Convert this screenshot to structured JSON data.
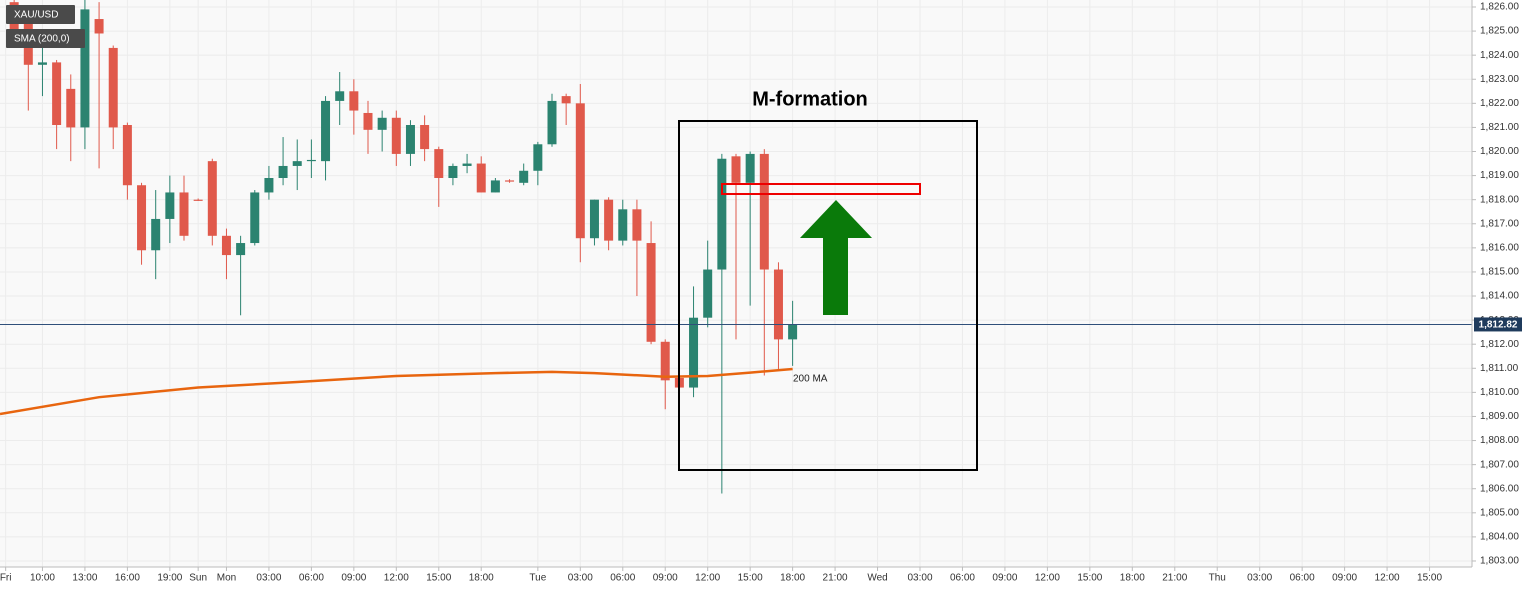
{
  "chart_data": {
    "type": "candlestick",
    "title": "XAU/USD",
    "x": [
      -2,
      -1,
      0,
      1,
      2,
      3,
      4,
      5,
      6,
      7,
      8,
      9,
      10,
      11,
      12,
      13,
      14,
      15,
      16,
      17,
      18,
      19,
      20,
      21,
      22,
      23,
      24,
      25,
      26,
      27,
      28,
      29,
      30,
      31,
      32,
      33,
      34,
      35,
      36,
      37,
      38,
      39,
      40,
      41,
      42,
      43,
      44,
      45,
      46,
      47,
      48,
      49,
      50,
      51,
      52,
      53
    ],
    "open": [
      1826.2,
      1825.5,
      1823.6,
      1823.7,
      1822.6,
      1821.0,
      1825.5,
      1824.3,
      1821.1,
      1818.6,
      1815.9,
      1817.2,
      1818.3,
      1818.0,
      1819.6,
      1816.5,
      1815.7,
      1816.2,
      1818.3,
      1818.9,
      1819.4,
      1819.6,
      1819.6,
      1822.1,
      1822.5,
      1821.6,
      1820.9,
      1821.4,
      1819.9,
      1821.1,
      1820.1,
      1818.9,
      1819.4,
      1819.5,
      1818.3,
      1818.8,
      1818.7,
      1819.2,
      1820.3,
      1822.3,
      1822.0,
      1816.4,
      1818.0,
      1816.3,
      1817.6,
      1816.2,
      1812.1,
      1810.6,
      1810.2,
      1813.1,
      1815.1,
      1819.8,
      1818.7,
      1819.9,
      1815.1,
      1812.2
    ],
    "high": [
      1826.3,
      1826.0,
      1824.6,
      1823.8,
      1823.2,
      1826.3,
      1826.2,
      1824.4,
      1821.2,
      1818.7,
      1818.4,
      1819.0,
      1819.0,
      1818.05,
      1819.7,
      1816.8,
      1816.5,
      1818.4,
      1819.4,
      1820.6,
      1820.5,
      1820.5,
      1822.3,
      1823.3,
      1823.0,
      1822.1,
      1821.7,
      1821.7,
      1821.3,
      1821.5,
      1820.2,
      1819.5,
      1819.9,
      1819.8,
      1818.9,
      1818.85,
      1819.5,
      1820.4,
      1822.4,
      1822.4,
      1822.8,
      1818.0,
      1818.1,
      1818.0,
      1818.0,
      1817.1,
      1812.2,
      1810.7,
      1814.4,
      1816.3,
      1819.9,
      1819.9,
      1820.0,
      1820.1,
      1815.4,
      1813.8
    ],
    "low": [
      1824.5,
      1821.7,
      1822.3,
      1820.1,
      1819.6,
      1820.1,
      1819.3,
      1820.1,
      1818.0,
      1815.3,
      1814.7,
      1816.2,
      1816.3,
      1817.95,
      1816.1,
      1814.7,
      1813.2,
      1816.1,
      1818.0,
      1818.6,
      1818.4,
      1818.9,
      1818.8,
      1821.1,
      1820.7,
      1819.9,
      1820.0,
      1819.4,
      1819.4,
      1819.6,
      1817.7,
      1818.6,
      1819.1,
      1818.3,
      1818.3,
      1818.7,
      1818.6,
      1818.6,
      1820.2,
      1821.1,
      1815.4,
      1816.1,
      1815.9,
      1816.1,
      1814.0,
      1812.0,
      1809.3,
      1810.1,
      1809.8,
      1812.7,
      1805.8,
      1812.2,
      1813.6,
      1810.7,
      1810.9,
      1811.1
    ],
    "close": [
      1825.0,
      1823.6,
      1823.7,
      1821.1,
      1821.0,
      1825.9,
      1824.9,
      1821.0,
      1818.6,
      1815.9,
      1817.2,
      1818.3,
      1816.5,
      1817.95,
      1816.5,
      1815.7,
      1816.2,
      1818.3,
      1818.9,
      1819.4,
      1819.6,
      1819.65,
      1822.1,
      1822.5,
      1821.7,
      1820.9,
      1821.4,
      1819.9,
      1821.1,
      1820.1,
      1818.9,
      1819.4,
      1819.5,
      1818.3,
      1818.8,
      1818.75,
      1819.2,
      1820.3,
      1822.1,
      1822.0,
      1816.4,
      1818.0,
      1816.3,
      1817.6,
      1816.3,
      1812.1,
      1810.5,
      1810.2,
      1813.1,
      1815.1,
      1819.7,
      1818.7,
      1819.9,
      1815.1,
      1812.2,
      1812.82
    ],
    "up_color": "#2b8370",
    "down_color": "#e0594b",
    "sma": {
      "name": "SMA (200,0)",
      "color": "#e8650f",
      "x": [
        -3,
        4,
        11,
        18,
        25,
        32,
        36,
        39,
        44,
        47,
        50,
        53
      ],
      "values": [
        1809.1,
        1809.8,
        1810.2,
        1810.43,
        1810.68,
        1810.8,
        1810.85,
        1810.8,
        1810.65,
        1810.68,
        1810.82,
        1810.97
      ]
    },
    "last_price": {
      "value": 1812.82,
      "label": "1,812.82"
    },
    "annotations": [
      "M-formation",
      "200 MA"
    ],
    "xlim": [
      -3,
      101
    ],
    "ylim": [
      1802.75,
      1826.29
    ],
    "grid": true,
    "xticks": [
      {
        "value": -2.6,
        "label": "Fri"
      },
      {
        "value": 0,
        "label": "10:00"
      },
      {
        "value": 3,
        "label": "13:00"
      },
      {
        "value": 6,
        "label": "16:00"
      },
      {
        "value": 9,
        "label": "19:00"
      },
      {
        "value": 11,
        "label": "Sun"
      },
      {
        "value": 13,
        "label": "Mon"
      },
      {
        "value": 16,
        "label": "03:00"
      },
      {
        "value": 19,
        "label": "06:00"
      },
      {
        "value": 22,
        "label": "09:00"
      },
      {
        "value": 25,
        "label": "12:00"
      },
      {
        "value": 28,
        "label": "15:00"
      },
      {
        "value": 31,
        "label": "18:00"
      },
      {
        "value": 35,
        "label": "Tue"
      },
      {
        "value": 38,
        "label": "03:00"
      },
      {
        "value": 41,
        "label": "06:00"
      },
      {
        "value": 44,
        "label": "09:00"
      },
      {
        "value": 47,
        "label": "12:00"
      },
      {
        "value": 50,
        "label": "15:00"
      },
      {
        "value": 53,
        "label": "18:00"
      },
      {
        "value": 56,
        "label": "21:00"
      },
      {
        "value": 59,
        "label": "Wed"
      },
      {
        "value": 62,
        "label": "03:00"
      },
      {
        "value": 65,
        "label": "06:00"
      },
      {
        "value": 68,
        "label": "09:00"
      },
      {
        "value": 71,
        "label": "12:00"
      },
      {
        "value": 74,
        "label": "15:00"
      },
      {
        "value": 77,
        "label": "18:00"
      },
      {
        "value": 80,
        "label": "21:00"
      },
      {
        "value": 83,
        "label": "Thu"
      },
      {
        "value": 86,
        "label": "03:00"
      },
      {
        "value": 89,
        "label": "06:00"
      },
      {
        "value": 92,
        "label": "09:00"
      },
      {
        "value": 95,
        "label": "12:00"
      },
      {
        "value": 98,
        "label": "15:00"
      }
    ],
    "yticks": [
      {
        "value": 1803,
        "label": "1,803.00"
      },
      {
        "value": 1804,
        "label": "1,804.00"
      },
      {
        "value": 1805,
        "label": "1,805.00"
      },
      {
        "value": 1806,
        "label": "1,806.00"
      },
      {
        "value": 1807,
        "label": "1,807.00"
      },
      {
        "value": 1808,
        "label": "1,808.00"
      },
      {
        "value": 1809,
        "label": "1,809.00"
      },
      {
        "value": 1810,
        "label": "1,810.00"
      },
      {
        "value": 1811,
        "label": "1,811.00"
      },
      {
        "value": 1812,
        "label": "1,812.00"
      },
      {
        "value": 1813,
        "label": "1,813.00"
      },
      {
        "value": 1814,
        "label": "1,814.00"
      },
      {
        "value": 1815,
        "label": "1,815.00"
      },
      {
        "value": 1816,
        "label": "1,816.00"
      },
      {
        "value": 1817,
        "label": "1,817.00"
      },
      {
        "value": 1818,
        "label": "1,818.00"
      },
      {
        "value": 1819,
        "label": "1,819.00"
      },
      {
        "value": 1820,
        "label": "1,820.00"
      },
      {
        "value": 1821,
        "label": "1,821.00"
      },
      {
        "value": 1822,
        "label": "1,822.00"
      },
      {
        "value": 1823,
        "label": "1,823.00"
      },
      {
        "value": 1824,
        "label": "1,824.00"
      },
      {
        "value": 1825,
        "label": "1,825.00"
      },
      {
        "value": 1826,
        "label": "1,826.00"
      }
    ]
  }
}
